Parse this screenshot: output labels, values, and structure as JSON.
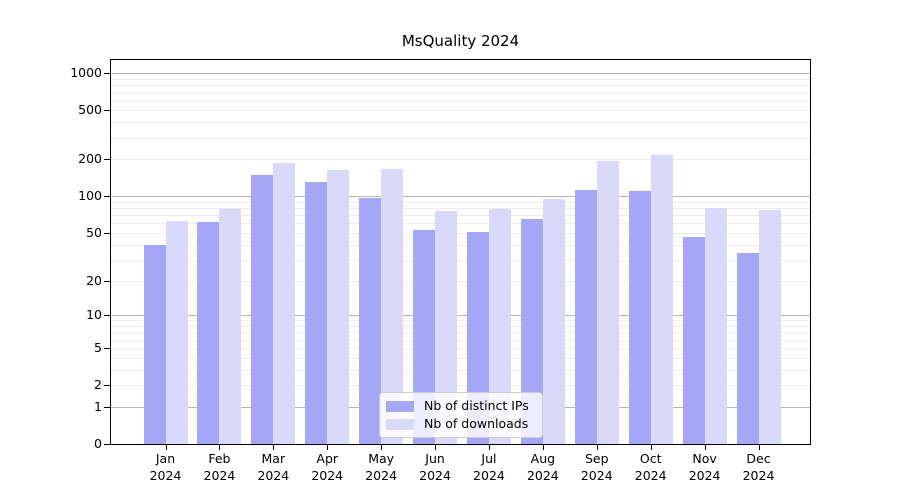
{
  "figure": {
    "background": "#ffffff"
  },
  "chart_data": {
    "type": "bar",
    "title": "MsQuality 2024",
    "xlabel": "",
    "ylabel": "",
    "categories": [
      "Jan 2024",
      "Feb 2024",
      "Mar 2024",
      "Apr 2024",
      "May 2024",
      "Jun 2024",
      "Jul 2024",
      "Aug 2024",
      "Sep 2024",
      "Oct 2024",
      "Nov 2024",
      "Dec 2024"
    ],
    "series": [
      {
        "name": "Nb of distinct IPs",
        "color": "#a6a6f6",
        "values": [
          40,
          61,
          150,
          130,
          96,
          53,
          51,
          65,
          113,
          110,
          46,
          34
        ]
      },
      {
        "name": "Nb of downloads",
        "color": "#d9daf9",
        "values": [
          63,
          79,
          185,
          163,
          166,
          75,
          78,
          95,
          193,
          217,
          80,
          77
        ]
      }
    ],
    "y_scale": "log1p",
    "ylim": [
      0,
      1300
    ],
    "y_ticks": [
      0,
      1,
      2,
      5,
      10,
      20,
      50,
      100,
      200,
      500,
      1000
    ],
    "y_major_gridlines": [
      1,
      10,
      100,
      1000
    ],
    "y_minor_gridlines": [
      2,
      3,
      4,
      5,
      6,
      7,
      8,
      9,
      20,
      30,
      40,
      50,
      60,
      70,
      80,
      90,
      200,
      300,
      400,
      500,
      600,
      700,
      800,
      900
    ],
    "grid": true,
    "legend": {
      "position": "lower center"
    }
  },
  "colors": {
    "bar_distinct_ips": "#a6a6f6",
    "bar_downloads": "#d9daf9",
    "major_grid": "#b6b6b6",
    "minor_grid": "#ebebeb",
    "spine": "#000000",
    "text": "#000000",
    "legend_border": "#cccccc",
    "legend_background": "rgba(255,255,255,0.8)"
  }
}
